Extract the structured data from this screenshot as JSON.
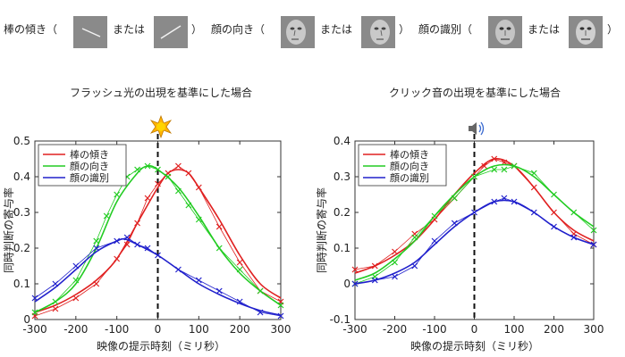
{
  "header": {
    "conditions": [
      {
        "label": "棒の傾き（",
        "or_text": "または",
        "close": "）",
        "stimulus": "bar"
      },
      {
        "label": "顔の向き（",
        "or_text": "または",
        "close": "）",
        "stimulus": "face-orientation"
      },
      {
        "label": "顔の識別（",
        "or_text": "または",
        "close": "）",
        "stimulus": "face-identity"
      }
    ]
  },
  "colors": {
    "tilt": "#e02020",
    "orient": "#22cc22",
    "ident": "#2020cc",
    "marker_flash": "#ffb400",
    "marker_speaker": "#666666"
  },
  "chart_data": [
    {
      "type": "line",
      "title": "フラッシュ光の出現を基準にした場合",
      "xlabel": "映像の提示時刻（ミリ秒）",
      "ylabel": "同時判断の寄与率",
      "xlim": [
        -300,
        300
      ],
      "ylim": [
        0,
        0.5
      ],
      "xticks": [
        -300,
        -200,
        -100,
        0,
        100,
        200,
        300
      ],
      "yticks": [
        0,
        0.1,
        0.2,
        0.3,
        0.4,
        0.5
      ],
      "ytick_labels": [
        "0",
        "0.1",
        "0.2",
        "0.3",
        "0.4",
        "0.5"
      ],
      "grid": false,
      "legend": "top-left",
      "reference_line_x": 0,
      "reference_marker": "flash-icon",
      "series": [
        {
          "name": "棒の傾き",
          "color": "#e02020",
          "points_x": [
            -300,
            -250,
            -200,
            -150,
            -100,
            -75,
            -50,
            -25,
            0,
            25,
            50,
            75,
            100,
            150,
            200,
            250,
            300
          ],
          "points_y": [
            0.01,
            0.03,
            0.06,
            0.1,
            0.17,
            0.21,
            0.27,
            0.34,
            0.38,
            0.41,
            0.43,
            0.41,
            0.37,
            0.26,
            0.16,
            0.08,
            0.05
          ],
          "fit_x": [
            -300,
            -250,
            -200,
            -150,
            -100,
            -50,
            0,
            25,
            50,
            75,
            100,
            150,
            200,
            250,
            300
          ],
          "fit_y": [
            0.02,
            0.04,
            0.07,
            0.11,
            0.17,
            0.27,
            0.37,
            0.41,
            0.42,
            0.41,
            0.37,
            0.28,
            0.18,
            0.1,
            0.06
          ]
        },
        {
          "name": "顔の向き",
          "color": "#22cc22",
          "points_x": [
            -300,
            -250,
            -200,
            -150,
            -125,
            -100,
            -75,
            -50,
            -25,
            0,
            25,
            50,
            75,
            100,
            150,
            200,
            250,
            300
          ],
          "points_y": [
            0.02,
            0.05,
            0.11,
            0.22,
            0.29,
            0.35,
            0.4,
            0.42,
            0.43,
            0.42,
            0.4,
            0.36,
            0.32,
            0.28,
            0.2,
            0.14,
            0.08,
            0.04
          ],
          "fit_x": [
            -300,
            -250,
            -200,
            -150,
            -100,
            -50,
            -25,
            0,
            50,
            100,
            150,
            200,
            250,
            300
          ],
          "fit_y": [
            0.02,
            0.05,
            0.1,
            0.2,
            0.33,
            0.41,
            0.43,
            0.42,
            0.37,
            0.29,
            0.2,
            0.13,
            0.08,
            0.04
          ]
        },
        {
          "name": "顔の識別",
          "color": "#2020cc",
          "points_x": [
            -300,
            -250,
            -200,
            -150,
            -100,
            -75,
            -50,
            -25,
            0,
            50,
            100,
            150,
            200,
            250,
            300
          ],
          "points_y": [
            0.06,
            0.1,
            0.15,
            0.2,
            0.22,
            0.23,
            0.21,
            0.2,
            0.18,
            0.14,
            0.11,
            0.08,
            0.05,
            0.02,
            0.01
          ],
          "fit_x": [
            -300,
            -250,
            -200,
            -150,
            -100,
            -80,
            -50,
            0,
            50,
            100,
            150,
            200,
            250,
            300
          ],
          "fit_y": [
            0.05,
            0.09,
            0.14,
            0.19,
            0.22,
            0.225,
            0.21,
            0.18,
            0.14,
            0.1,
            0.07,
            0.045,
            0.025,
            0.012
          ]
        }
      ]
    },
    {
      "type": "line",
      "title": "クリック音の出現を基準にした場合",
      "xlabel": "映像の提示時刻（ミリ秒）",
      "ylabel": "同時判断の寄与率",
      "xlim": [
        -300,
        300
      ],
      "ylim": [
        -0.1,
        0.4
      ],
      "xticks": [
        -300,
        -200,
        -100,
        0,
        100,
        200,
        300
      ],
      "yticks": [
        -0.1,
        0,
        0.1,
        0.2,
        0.3,
        0.4
      ],
      "ytick_labels": [
        "-0.1",
        "0",
        "0.1",
        "0.2",
        "0.3",
        "0.4"
      ],
      "grid": false,
      "legend": "top-left",
      "reference_line_x": 0,
      "reference_marker": "speaker-icon",
      "series": [
        {
          "name": "棒の傾き",
          "color": "#e02020",
          "points_x": [
            -300,
            -250,
            -200,
            -150,
            -100,
            -50,
            0,
            25,
            50,
            75,
            100,
            150,
            200,
            250,
            300
          ],
          "points_y": [
            0.04,
            0.05,
            0.09,
            0.14,
            0.18,
            0.24,
            0.3,
            0.33,
            0.35,
            0.34,
            0.33,
            0.27,
            0.2,
            0.14,
            0.11
          ],
          "fit_x": [
            -300,
            -250,
            -200,
            -150,
            -100,
            -50,
            0,
            50,
            100,
            150,
            200,
            250,
            300
          ],
          "fit_y": [
            0.03,
            0.05,
            0.08,
            0.12,
            0.18,
            0.25,
            0.31,
            0.35,
            0.33,
            0.27,
            0.2,
            0.15,
            0.12
          ]
        },
        {
          "name": "顔の向き",
          "color": "#22cc22",
          "points_x": [
            -300,
            -250,
            -200,
            -150,
            -100,
            -50,
            0,
            50,
            75,
            100,
            150,
            200,
            250,
            300
          ],
          "points_y": [
            0.0,
            0.02,
            0.06,
            0.13,
            0.19,
            0.24,
            0.3,
            0.32,
            0.32,
            0.33,
            0.31,
            0.25,
            0.2,
            0.15
          ],
          "fit_x": [
            -300,
            -250,
            -200,
            -150,
            -100,
            -50,
            0,
            50,
            100,
            150,
            200,
            250,
            300
          ],
          "fit_y": [
            0.01,
            0.03,
            0.07,
            0.12,
            0.19,
            0.25,
            0.3,
            0.33,
            0.33,
            0.3,
            0.25,
            0.2,
            0.16
          ]
        },
        {
          "name": "顔の識別",
          "color": "#2020cc",
          "points_x": [
            -300,
            -250,
            -200,
            -150,
            -100,
            -50,
            0,
            50,
            75,
            100,
            150,
            200,
            250,
            300
          ],
          "points_y": [
            0.0,
            0.01,
            0.02,
            0.05,
            0.12,
            0.17,
            0.2,
            0.23,
            0.24,
            0.23,
            0.2,
            0.16,
            0.13,
            0.11
          ],
          "fit_x": [
            -300,
            -250,
            -200,
            -150,
            -100,
            -50,
            0,
            50,
            100,
            150,
            200,
            250,
            300
          ],
          "fit_y": [
            0.0,
            0.01,
            0.03,
            0.06,
            0.11,
            0.16,
            0.2,
            0.23,
            0.23,
            0.2,
            0.16,
            0.13,
            0.11
          ]
        }
      ]
    }
  ]
}
